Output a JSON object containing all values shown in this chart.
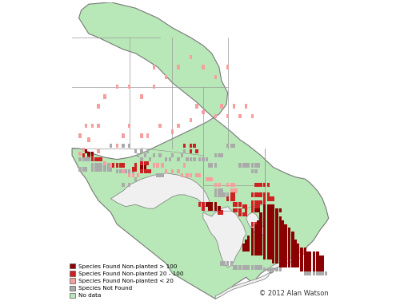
{
  "copyright": "© 2012 Alan Watson",
  "background_color": "#ffffff",
  "map_bg_color": "#b8e8b8",
  "water_color": "#f0f0f0",
  "border_color": "#888888",
  "legend": {
    "labels": [
      "Species Found Non-planted > 100",
      "Species Found Non-planted 20 - 100",
      "Species Found Non-planted < 20",
      "Species Not Found",
      "No data"
    ],
    "colors": [
      "#8b0000",
      "#cc2222",
      "#f4a0a0",
      "#aaaaaa",
      "#b8e8b8"
    ],
    "edge_colors": [
      "#555555",
      "#555555",
      "#555555",
      "#888888",
      "#888888"
    ]
  },
  "figsize": [
    5.0,
    3.82
  ],
  "dpi": 100,
  "xlim": [
    -95.5,
    -74.0
  ],
  "ylim": [
    41.5,
    56.8
  ]
}
